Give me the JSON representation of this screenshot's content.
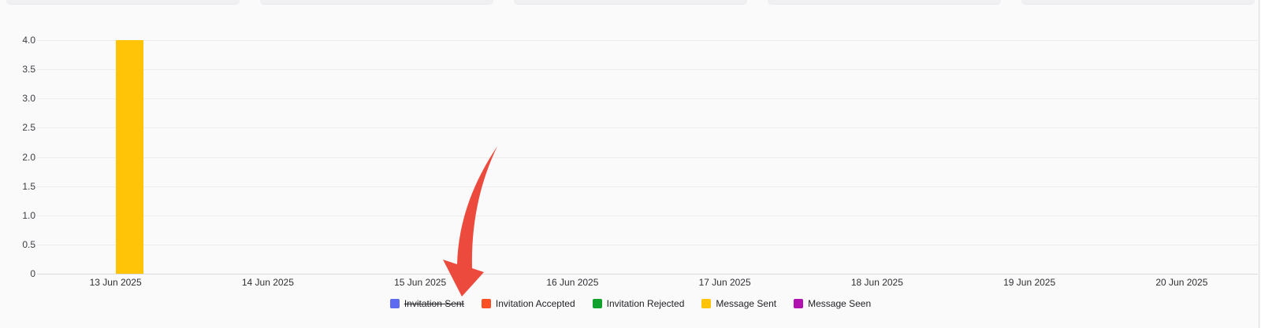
{
  "page": {
    "background": "#fafafb"
  },
  "chart_data": {
    "type": "bar",
    "title": "",
    "xlabel": "",
    "ylabel": "",
    "categories": [
      "13 Jun 2025",
      "14 Jun 2025",
      "15 Jun 2025",
      "16 Jun 2025",
      "17 Jun 2025",
      "18 Jun 2025",
      "19 Jun 2025",
      "20 Jun 2025"
    ],
    "series": [
      {
        "name": "Invitation Sent",
        "color": "#5c6bf0",
        "hidden": true,
        "values": [
          0,
          0,
          0,
          0,
          0,
          0,
          0,
          0
        ]
      },
      {
        "name": "Invitation Accepted",
        "color": "#fb4f24",
        "hidden": false,
        "values": [
          0,
          0,
          0,
          0,
          0,
          0,
          0,
          0
        ]
      },
      {
        "name": "Invitation Rejected",
        "color": "#11a22e",
        "hidden": false,
        "values": [
          0,
          0,
          0,
          0,
          0,
          0,
          0,
          0
        ]
      },
      {
        "name": "Message Sent",
        "color": "#ffc407",
        "hidden": false,
        "values": [
          4,
          0,
          0,
          0,
          0,
          0,
          0,
          0
        ]
      },
      {
        "name": "Message Seen",
        "color": "#b011af",
        "hidden": false,
        "values": [
          0,
          0,
          0,
          0,
          0,
          0,
          0,
          0
        ]
      }
    ],
    "ylim": [
      0,
      4
    ],
    "yticks": [
      {
        "value": 4.0,
        "label": "4.0"
      },
      {
        "value": 3.5,
        "label": "3.5"
      },
      {
        "value": 3.0,
        "label": "3.0"
      },
      {
        "value": 2.5,
        "label": "2.5"
      },
      {
        "value": 2.0,
        "label": "2.0"
      },
      {
        "value": 1.5,
        "label": "1.5"
      },
      {
        "value": 1.0,
        "label": "1.0"
      },
      {
        "value": 0.5,
        "label": "0.5"
      },
      {
        "value": 0,
        "label": "0"
      }
    ],
    "grid": true,
    "legend_position": "bottom"
  },
  "annotation": {
    "type": "arrow",
    "arrow_color": "#ec4a3d",
    "points_at": "15 Jun 2025"
  }
}
